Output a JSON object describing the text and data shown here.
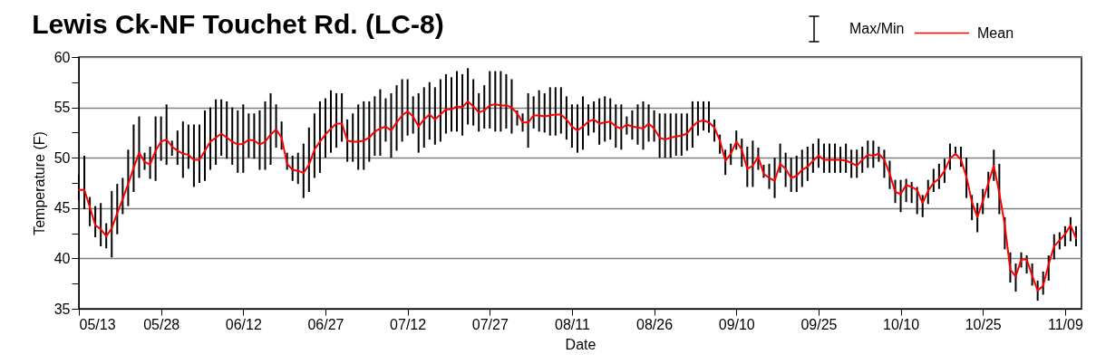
{
  "chart_data": {
    "type": "line",
    "title": "Lewis Ck-NF Touchet Rd. (LC-8)",
    "xlabel": "Date",
    "ylabel": "Temperature (F)",
    "annotations": [
      "Max/Min"
    ],
    "x": [
      "--05-13",
      "--05-14",
      "--05-15",
      "--05-16",
      "--05-17",
      "--05-18",
      "--05-19",
      "--05-20",
      "--05-21",
      "--05-22",
      "--05-23",
      "--05-24",
      "--05-25",
      "--05-26",
      "--05-27",
      "--05-28",
      "--05-29",
      "--05-30",
      "--05-31",
      "--06-01",
      "--06-02",
      "--06-03",
      "--06-04",
      "--06-05",
      "--06-06",
      "--06-07",
      "--06-08",
      "--06-09",
      "--06-10",
      "--06-11",
      "--06-12",
      "--06-13",
      "--06-14",
      "--06-15",
      "--06-16",
      "--06-17",
      "--06-18",
      "--06-19",
      "--06-20",
      "--06-21",
      "--06-22",
      "--06-23",
      "--06-24",
      "--06-25",
      "--06-26",
      "--06-27",
      "--06-28",
      "--06-29",
      "--06-30",
      "--07-01",
      "--07-02",
      "--07-03",
      "--07-04",
      "--07-05",
      "--07-06",
      "--07-07",
      "--07-08",
      "--07-09",
      "--07-10",
      "--07-11",
      "--07-12",
      "--07-13",
      "--07-14",
      "--07-15",
      "--07-16",
      "--07-17",
      "--07-18",
      "--07-19",
      "--07-20",
      "--07-21",
      "--07-22",
      "--07-23",
      "--07-24",
      "--07-25",
      "--07-26",
      "--07-27",
      "--07-28",
      "--07-29",
      "--07-30",
      "--07-31",
      "--08-01",
      "--08-02",
      "--08-03",
      "--08-04",
      "--08-05",
      "--08-06",
      "--08-07",
      "--08-08",
      "--08-09",
      "--08-10",
      "--08-11",
      "--08-12",
      "--08-13",
      "--08-14",
      "--08-15",
      "--08-16",
      "--08-17",
      "--08-18",
      "--08-19",
      "--08-20",
      "--08-21",
      "--08-22",
      "--08-23",
      "--08-24",
      "--08-25",
      "--08-26",
      "--08-27",
      "--08-28",
      "--08-29",
      "--08-30",
      "--08-31",
      "--09-01",
      "--09-02",
      "--09-03",
      "--09-04",
      "--09-05",
      "--09-06",
      "--09-07",
      "--09-08",
      "--09-09",
      "--09-10",
      "--09-11",
      "--09-12",
      "--09-13",
      "--09-14",
      "--09-15",
      "--09-16",
      "--09-17",
      "--09-18",
      "--09-19",
      "--09-20",
      "--09-21",
      "--09-22",
      "--09-23",
      "--09-24",
      "--09-25",
      "--09-26",
      "--09-27",
      "--09-28",
      "--09-29",
      "--09-30",
      "--10-01",
      "--10-02",
      "--10-03",
      "--10-04",
      "--10-05",
      "--10-06",
      "--10-07",
      "--10-08",
      "--10-09",
      "--10-10",
      "--10-11",
      "--10-12",
      "--10-13",
      "--10-14",
      "--10-15",
      "--10-16",
      "--10-17",
      "--10-18",
      "--10-19",
      "--10-20",
      "--10-21",
      "--10-22",
      "--10-23",
      "--10-24",
      "--10-25",
      "--10-26",
      "--10-27",
      "--10-28",
      "--10-29",
      "--10-30",
      "--10-31",
      "--11-01",
      "--11-02",
      "--11-03",
      "--11-04",
      "--11-05",
      "--11-06",
      "--11-07",
      "--11-08",
      "--11-09",
      "--11-10",
      "--11-11"
    ],
    "series": [
      {
        "name": "Mean",
        "color": "#ff0000",
        "values": [
          46.8,
          46.8,
          45.1,
          43.3,
          42.9,
          42.2,
          43.0,
          44.5,
          45.9,
          47.4,
          49.0,
          50.5,
          49.6,
          49.3,
          50.7,
          51.6,
          51.8,
          51.1,
          50.7,
          50.4,
          50.3,
          49.8,
          49.8,
          50.7,
          51.6,
          52.0,
          52.4,
          52.0,
          51.6,
          51.3,
          51.4,
          51.8,
          51.7,
          51.3,
          51.6,
          52.3,
          52.8,
          52.0,
          49.4,
          48.8,
          48.7,
          48.5,
          49.3,
          50.8,
          51.6,
          52.3,
          52.9,
          53.4,
          53.4,
          51.7,
          51.6,
          51.6,
          51.7,
          52.0,
          52.6,
          52.9,
          53.1,
          52.7,
          53.5,
          54.2,
          54.6,
          54.1,
          53.1,
          53.8,
          54.3,
          53.8,
          54.3,
          54.8,
          54.8,
          55.1,
          55.0,
          55.6,
          55.1,
          54.5,
          54.7,
          55.2,
          55.3,
          55.2,
          55.2,
          55.0,
          54.4,
          53.5,
          53.5,
          54.2,
          54.2,
          54.1,
          54.2,
          54.3,
          54.3,
          53.8,
          53.1,
          52.7,
          53.1,
          53.6,
          53.8,
          53.4,
          53.5,
          53.6,
          53.1,
          52.9,
          53.3,
          53.1,
          53.0,
          52.9,
          53.4,
          52.9,
          52.0,
          51.8,
          52.0,
          52.1,
          52.2,
          52.4,
          53.1,
          53.6,
          53.7,
          53.5,
          53.0,
          51.7,
          49.7,
          50.4,
          51.6,
          50.8,
          48.9,
          49.2,
          50.1,
          48.4,
          48.0,
          47.7,
          49.4,
          48.9,
          48.0,
          48.2,
          48.8,
          49.1,
          49.7,
          50.2,
          49.8,
          49.8,
          49.8,
          49.8,
          49.7,
          49.5,
          49.2,
          49.8,
          50.3,
          50.2,
          50.4,
          49.8,
          48.4,
          46.6,
          46.4,
          47.3,
          47.1,
          46.8,
          45.5,
          46.7,
          47.5,
          47.9,
          48.7,
          49.9,
          50.4,
          49.8,
          48.1,
          45.6,
          44.1,
          45.7,
          47.5,
          49.2,
          46.5,
          43.3,
          38.9,
          38.2,
          39.9,
          39.9,
          38.3,
          36.8,
          37.3,
          39.4,
          41.2,
          41.8,
          42.4,
          43.3,
          42.0
        ],
        "errors": [
          [
            45.8,
            48.3
          ],
          [
            44.9,
            50.2
          ],
          [
            43.2,
            46.1
          ],
          [
            42.1,
            45.2
          ],
          [
            41.2,
            45.5
          ],
          [
            41.0,
            43.5
          ],
          [
            40.1,
            46.7
          ],
          [
            42.4,
            47.4
          ],
          [
            44.4,
            48.0
          ],
          [
            45.2,
            50.8
          ],
          [
            46.6,
            53.3
          ],
          [
            48.0,
            54.1
          ],
          [
            48.8,
            50.5
          ],
          [
            47.9,
            51.1
          ],
          [
            47.7,
            54.1
          ],
          [
            49.7,
            54.1
          ],
          [
            49.3,
            55.3
          ],
          [
            50.2,
            51.7
          ],
          [
            49.3,
            52.7
          ],
          [
            48.0,
            53.6
          ],
          [
            48.9,
            53.3
          ],
          [
            47.1,
            53.3
          ],
          [
            47.5,
            53.3
          ],
          [
            47.7,
            54.7
          ],
          [
            48.8,
            55.0
          ],
          [
            49.3,
            55.8
          ],
          [
            50.2,
            55.8
          ],
          [
            49.9,
            55.6
          ],
          [
            49.3,
            55.0
          ],
          [
            48.5,
            54.7
          ],
          [
            48.5,
            55.3
          ],
          [
            50.0,
            54.4
          ],
          [
            49.9,
            54.4
          ],
          [
            48.8,
            54.7
          ],
          [
            48.8,
            55.6
          ],
          [
            49.3,
            56.4
          ],
          [
            51.0,
            55.3
          ],
          [
            50.8,
            53.6
          ],
          [
            48.8,
            50.5
          ],
          [
            47.7,
            50.2
          ],
          [
            47.4,
            50.5
          ],
          [
            46.0,
            51.4
          ],
          [
            46.6,
            53.0
          ],
          [
            48.0,
            54.4
          ],
          [
            48.5,
            55.6
          ],
          [
            50.0,
            55.9
          ],
          [
            50.5,
            56.7
          ],
          [
            51.0,
            56.4
          ],
          [
            51.6,
            56.4
          ],
          [
            49.6,
            53.8
          ],
          [
            49.6,
            54.4
          ],
          [
            48.8,
            55.3
          ],
          [
            48.8,
            55.6
          ],
          [
            49.6,
            55.6
          ],
          [
            50.2,
            56.1
          ],
          [
            50.2,
            56.8
          ],
          [
            51.6,
            55.9
          ],
          [
            50.0,
            56.4
          ],
          [
            50.7,
            57.2
          ],
          [
            51.6,
            57.8
          ],
          [
            52.2,
            57.8
          ],
          [
            52.4,
            56.1
          ],
          [
            50.5,
            56.4
          ],
          [
            51.0,
            57.0
          ],
          [
            51.8,
            57.5
          ],
          [
            51.3,
            57.0
          ],
          [
            51.6,
            57.8
          ],
          [
            52.4,
            58.3
          ],
          [
            52.6,
            58.0
          ],
          [
            52.6,
            58.6
          ],
          [
            52.2,
            58.3
          ],
          [
            53.3,
            58.9
          ],
          [
            53.2,
            57.8
          ],
          [
            52.6,
            56.4
          ],
          [
            52.9,
            57.2
          ],
          [
            52.9,
            58.6
          ],
          [
            52.6,
            58.6
          ],
          [
            52.6,
            58.6
          ],
          [
            52.9,
            58.3
          ],
          [
            52.4,
            57.8
          ],
          [
            53.2,
            54.7
          ],
          [
            52.6,
            54.4
          ],
          [
            51.0,
            56.4
          ],
          [
            52.9,
            56.1
          ],
          [
            52.6,
            56.7
          ],
          [
            52.5,
            56.4
          ],
          [
            52.2,
            57.0
          ],
          [
            52.2,
            57.0
          ],
          [
            52.4,
            57.0
          ],
          [
            51.8,
            56.1
          ],
          [
            51.0,
            55.3
          ],
          [
            50.5,
            55.3
          ],
          [
            50.8,
            56.1
          ],
          [
            52.2,
            55.3
          ],
          [
            52.5,
            55.6
          ],
          [
            51.3,
            55.9
          ],
          [
            51.6,
            56.1
          ],
          [
            51.8,
            55.9
          ],
          [
            51.0,
            55.3
          ],
          [
            50.8,
            55.3
          ],
          [
            52.3,
            54.1
          ],
          [
            51.8,
            54.7
          ],
          [
            51.3,
            55.3
          ],
          [
            50.8,
            55.6
          ],
          [
            51.6,
            55.3
          ],
          [
            51.6,
            54.7
          ],
          [
            50.0,
            54.4
          ],
          [
            50.0,
            54.4
          ],
          [
            50.0,
            54.4
          ],
          [
            50.2,
            54.4
          ],
          [
            50.2,
            54.4
          ],
          [
            50.7,
            54.4
          ],
          [
            51.0,
            55.6
          ],
          [
            52.2,
            55.6
          ],
          [
            52.7,
            55.6
          ],
          [
            52.5,
            55.6
          ],
          [
            51.6,
            53.8
          ],
          [
            50.4,
            52.3
          ],
          [
            48.3,
            50.8
          ],
          [
            49.3,
            51.4
          ],
          [
            50.8,
            52.7
          ],
          [
            49.1,
            51.9
          ],
          [
            47.1,
            51.1
          ],
          [
            47.1,
            51.7
          ],
          [
            48.8,
            51.0
          ],
          [
            48.0,
            49.3
          ],
          [
            46.9,
            49.4
          ],
          [
            46.0,
            50.0
          ],
          [
            48.5,
            51.4
          ],
          [
            47.1,
            50.5
          ],
          [
            46.6,
            50.0
          ],
          [
            46.6,
            50.2
          ],
          [
            47.1,
            50.8
          ],
          [
            47.7,
            51.1
          ],
          [
            48.5,
            51.4
          ],
          [
            49.0,
            51.9
          ],
          [
            48.5,
            51.4
          ],
          [
            48.5,
            51.4
          ],
          [
            48.5,
            51.4
          ],
          [
            48.5,
            51.1
          ],
          [
            48.5,
            51.4
          ],
          [
            48.0,
            50.8
          ],
          [
            48.0,
            50.8
          ],
          [
            48.5,
            51.1
          ],
          [
            49.0,
            51.7
          ],
          [
            49.0,
            51.7
          ],
          [
            49.6,
            51.1
          ],
          [
            48.0,
            50.8
          ],
          [
            46.9,
            49.7
          ],
          [
            45.5,
            47.8
          ],
          [
            44.6,
            47.8
          ],
          [
            45.6,
            47.9
          ],
          [
            45.5,
            47.6
          ],
          [
            44.4,
            47.1
          ],
          [
            44.1,
            46.3
          ],
          [
            45.4,
            47.8
          ],
          [
            46.6,
            48.9
          ],
          [
            46.9,
            49.4
          ],
          [
            47.5,
            49.9
          ],
          [
            48.8,
            51.4
          ],
          [
            50.3,
            51.1
          ],
          [
            49.1,
            51.1
          ],
          [
            46.0,
            50.0
          ],
          [
            43.8,
            46.3
          ],
          [
            42.6,
            45.5
          ],
          [
            44.4,
            46.9
          ],
          [
            46.0,
            48.6
          ],
          [
            47.7,
            50.8
          ],
          [
            44.4,
            49.4
          ],
          [
            40.9,
            44.1
          ],
          [
            37.6,
            40.6
          ],
          [
            36.7,
            39.5
          ],
          [
            39.1,
            40.6
          ],
          [
            38.5,
            40.3
          ],
          [
            37.3,
            39.5
          ],
          [
            35.8,
            37.8
          ],
          [
            36.4,
            38.7
          ],
          [
            37.8,
            40.3
          ],
          [
            39.9,
            42.4
          ],
          [
            40.9,
            42.6
          ],
          [
            41.2,
            43.2
          ],
          [
            41.7,
            44.1
          ],
          [
            41.2,
            43.2
          ]
        ]
      }
    ],
    "xlim": [
      "--05-13",
      "--11-12"
    ],
    "xticks": [
      {
        "value": "--05-13",
        "label": "05/13"
      },
      {
        "value": "--05-28",
        "label": "05/28"
      },
      {
        "value": "--06-12",
        "label": "06/12"
      },
      {
        "value": "--06-27",
        "label": "06/27"
      },
      {
        "value": "--07-12",
        "label": "07/12"
      },
      {
        "value": "--07-27",
        "label": "07/27"
      },
      {
        "value": "--08-11",
        "label": "08/11"
      },
      {
        "value": "--08-26",
        "label": "08/26"
      },
      {
        "value": "--09-10",
        "label": "09/10"
      },
      {
        "value": "--09-25",
        "label": "09/25"
      },
      {
        "value": "--10-10",
        "label": "10/10"
      },
      {
        "value": "--10-25",
        "label": "10/25"
      },
      {
        "value": "--11-09",
        "label": "11/09"
      }
    ],
    "ylim": [
      35,
      60
    ],
    "yticks": [
      35,
      {
        "value": 37.5,
        "label": null
      },
      40,
      {
        "value": 42.5,
        "label": null
      },
      45,
      {
        "value": 47.5,
        "label": null
      },
      50,
      {
        "value": 52.5,
        "label": null
      },
      55,
      {
        "value": 57.5,
        "label": null
      },
      60
    ],
    "grid": "y",
    "legend": "top right"
  }
}
